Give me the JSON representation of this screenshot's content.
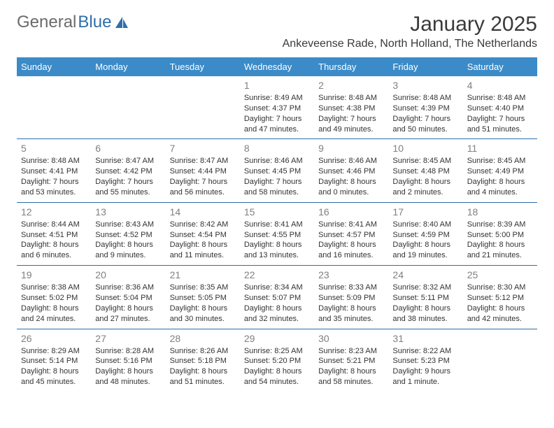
{
  "brand": {
    "part1": "General",
    "part2": "Blue"
  },
  "title": "January 2025",
  "subtitle": "Ankeveense Rade, North Holland, The Netherlands",
  "colors": {
    "header_bg": "#3b8bc8",
    "header_text": "#ffffff",
    "divider": "#2f6fa8",
    "daynum": "#808080",
    "body_text": "#333333",
    "brand_gray": "#6b6b6b",
    "brand_blue": "#2f6fa8",
    "page_bg": "#ffffff"
  },
  "dow": [
    "Sunday",
    "Monday",
    "Tuesday",
    "Wednesday",
    "Thursday",
    "Friday",
    "Saturday"
  ],
  "weeks": [
    [
      {},
      {},
      {},
      {
        "n": "1",
        "sr": "Sunrise: 8:49 AM",
        "ss": "Sunset: 4:37 PM",
        "d1": "Daylight: 7 hours",
        "d2": "and 47 minutes."
      },
      {
        "n": "2",
        "sr": "Sunrise: 8:48 AM",
        "ss": "Sunset: 4:38 PM",
        "d1": "Daylight: 7 hours",
        "d2": "and 49 minutes."
      },
      {
        "n": "3",
        "sr": "Sunrise: 8:48 AM",
        "ss": "Sunset: 4:39 PM",
        "d1": "Daylight: 7 hours",
        "d2": "and 50 minutes."
      },
      {
        "n": "4",
        "sr": "Sunrise: 8:48 AM",
        "ss": "Sunset: 4:40 PM",
        "d1": "Daylight: 7 hours",
        "d2": "and 51 minutes."
      }
    ],
    [
      {
        "n": "5",
        "sr": "Sunrise: 8:48 AM",
        "ss": "Sunset: 4:41 PM",
        "d1": "Daylight: 7 hours",
        "d2": "and 53 minutes."
      },
      {
        "n": "6",
        "sr": "Sunrise: 8:47 AM",
        "ss": "Sunset: 4:42 PM",
        "d1": "Daylight: 7 hours",
        "d2": "and 55 minutes."
      },
      {
        "n": "7",
        "sr": "Sunrise: 8:47 AM",
        "ss": "Sunset: 4:44 PM",
        "d1": "Daylight: 7 hours",
        "d2": "and 56 minutes."
      },
      {
        "n": "8",
        "sr": "Sunrise: 8:46 AM",
        "ss": "Sunset: 4:45 PM",
        "d1": "Daylight: 7 hours",
        "d2": "and 58 minutes."
      },
      {
        "n": "9",
        "sr": "Sunrise: 8:46 AM",
        "ss": "Sunset: 4:46 PM",
        "d1": "Daylight: 8 hours",
        "d2": "and 0 minutes."
      },
      {
        "n": "10",
        "sr": "Sunrise: 8:45 AM",
        "ss": "Sunset: 4:48 PM",
        "d1": "Daylight: 8 hours",
        "d2": "and 2 minutes."
      },
      {
        "n": "11",
        "sr": "Sunrise: 8:45 AM",
        "ss": "Sunset: 4:49 PM",
        "d1": "Daylight: 8 hours",
        "d2": "and 4 minutes."
      }
    ],
    [
      {
        "n": "12",
        "sr": "Sunrise: 8:44 AM",
        "ss": "Sunset: 4:51 PM",
        "d1": "Daylight: 8 hours",
        "d2": "and 6 minutes."
      },
      {
        "n": "13",
        "sr": "Sunrise: 8:43 AM",
        "ss": "Sunset: 4:52 PM",
        "d1": "Daylight: 8 hours",
        "d2": "and 9 minutes."
      },
      {
        "n": "14",
        "sr": "Sunrise: 8:42 AM",
        "ss": "Sunset: 4:54 PM",
        "d1": "Daylight: 8 hours",
        "d2": "and 11 minutes."
      },
      {
        "n": "15",
        "sr": "Sunrise: 8:41 AM",
        "ss": "Sunset: 4:55 PM",
        "d1": "Daylight: 8 hours",
        "d2": "and 13 minutes."
      },
      {
        "n": "16",
        "sr": "Sunrise: 8:41 AM",
        "ss": "Sunset: 4:57 PM",
        "d1": "Daylight: 8 hours",
        "d2": "and 16 minutes."
      },
      {
        "n": "17",
        "sr": "Sunrise: 8:40 AM",
        "ss": "Sunset: 4:59 PM",
        "d1": "Daylight: 8 hours",
        "d2": "and 19 minutes."
      },
      {
        "n": "18",
        "sr": "Sunrise: 8:39 AM",
        "ss": "Sunset: 5:00 PM",
        "d1": "Daylight: 8 hours",
        "d2": "and 21 minutes."
      }
    ],
    [
      {
        "n": "19",
        "sr": "Sunrise: 8:38 AM",
        "ss": "Sunset: 5:02 PM",
        "d1": "Daylight: 8 hours",
        "d2": "and 24 minutes."
      },
      {
        "n": "20",
        "sr": "Sunrise: 8:36 AM",
        "ss": "Sunset: 5:04 PM",
        "d1": "Daylight: 8 hours",
        "d2": "and 27 minutes."
      },
      {
        "n": "21",
        "sr": "Sunrise: 8:35 AM",
        "ss": "Sunset: 5:05 PM",
        "d1": "Daylight: 8 hours",
        "d2": "and 30 minutes."
      },
      {
        "n": "22",
        "sr": "Sunrise: 8:34 AM",
        "ss": "Sunset: 5:07 PM",
        "d1": "Daylight: 8 hours",
        "d2": "and 32 minutes."
      },
      {
        "n": "23",
        "sr": "Sunrise: 8:33 AM",
        "ss": "Sunset: 5:09 PM",
        "d1": "Daylight: 8 hours",
        "d2": "and 35 minutes."
      },
      {
        "n": "24",
        "sr": "Sunrise: 8:32 AM",
        "ss": "Sunset: 5:11 PM",
        "d1": "Daylight: 8 hours",
        "d2": "and 38 minutes."
      },
      {
        "n": "25",
        "sr": "Sunrise: 8:30 AM",
        "ss": "Sunset: 5:12 PM",
        "d1": "Daylight: 8 hours",
        "d2": "and 42 minutes."
      }
    ],
    [
      {
        "n": "26",
        "sr": "Sunrise: 8:29 AM",
        "ss": "Sunset: 5:14 PM",
        "d1": "Daylight: 8 hours",
        "d2": "and 45 minutes."
      },
      {
        "n": "27",
        "sr": "Sunrise: 8:28 AM",
        "ss": "Sunset: 5:16 PM",
        "d1": "Daylight: 8 hours",
        "d2": "and 48 minutes."
      },
      {
        "n": "28",
        "sr": "Sunrise: 8:26 AM",
        "ss": "Sunset: 5:18 PM",
        "d1": "Daylight: 8 hours",
        "d2": "and 51 minutes."
      },
      {
        "n": "29",
        "sr": "Sunrise: 8:25 AM",
        "ss": "Sunset: 5:20 PM",
        "d1": "Daylight: 8 hours",
        "d2": "and 54 minutes."
      },
      {
        "n": "30",
        "sr": "Sunrise: 8:23 AM",
        "ss": "Sunset: 5:21 PM",
        "d1": "Daylight: 8 hours",
        "d2": "and 58 minutes."
      },
      {
        "n": "31",
        "sr": "Sunrise: 8:22 AM",
        "ss": "Sunset: 5:23 PM",
        "d1": "Daylight: 9 hours",
        "d2": "and 1 minute."
      },
      {}
    ]
  ]
}
